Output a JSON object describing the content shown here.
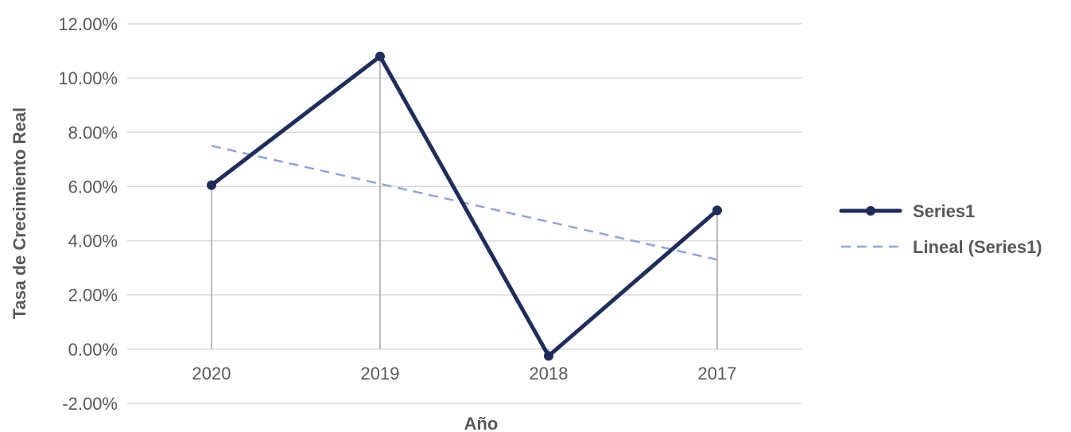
{
  "chart_data": {
    "type": "line",
    "title": "",
    "xlabel": "Año",
    "ylabel": "Tasa de Crecimiento Real",
    "categories": [
      "2020",
      "2019",
      "2018",
      "2017"
    ],
    "series": [
      {
        "name": "Series1",
        "values": [
          6.05,
          10.8,
          -0.25,
          5.12
        ],
        "color": "#1f2d5c",
        "style": "solid",
        "markers": true
      },
      {
        "name": "Lineal (Series1)",
        "values": [
          7.5,
          6.1,
          4.7,
          3.3
        ],
        "color": "#8fa3e0",
        "style": "dashed",
        "markers": false
      }
    ],
    "ylim": [
      -2,
      12
    ],
    "yticks": [
      "-2.00%",
      "0.00%",
      "2.00%",
      "4.00%",
      "6.00%",
      "8.00%",
      "10.00%",
      "12.00%"
    ],
    "ytick_values": [
      -2,
      0,
      2,
      4,
      6,
      8,
      10,
      12
    ],
    "grid": true,
    "drop_lines": true,
    "legend_position": "right",
    "colors": {
      "gridline": "#d9d9d9",
      "dropline": "#a6a6a6",
      "text": "#595959"
    }
  }
}
